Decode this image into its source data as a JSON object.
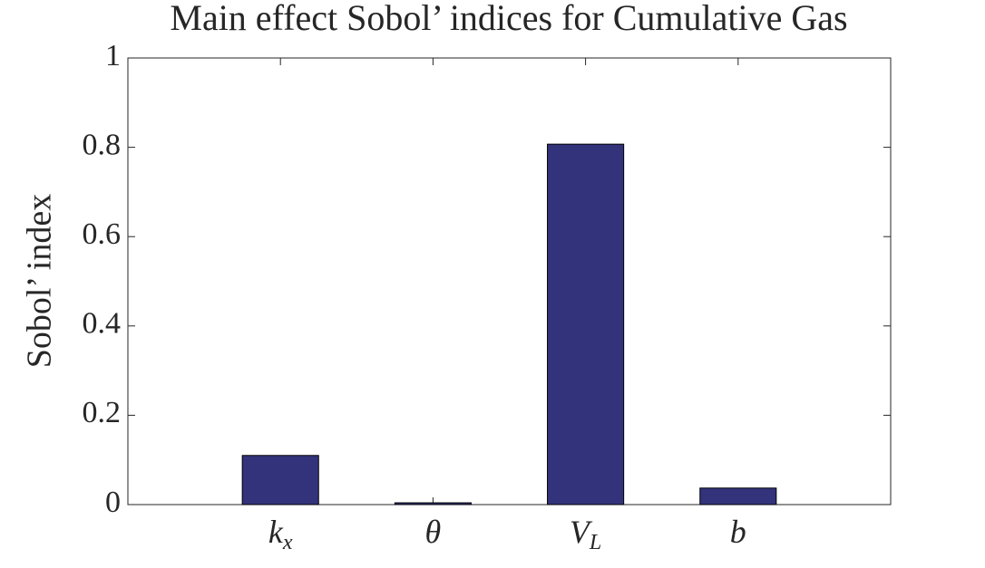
{
  "chart_data": {
    "type": "bar",
    "title": "Main effect Sobol’ indices for Cumulative Gas",
    "y_label": "Sobol’ index",
    "categories": [
      "kx",
      "θ",
      "VL",
      "b"
    ],
    "values": [
      0.11,
      0.004,
      0.807,
      0.037
    ],
    "color": "#32337b",
    "ylim": [
      0,
      1
    ],
    "yticks": [
      0,
      0.2,
      0.4,
      0.6,
      0.8,
      1
    ],
    "grid": false
  }
}
